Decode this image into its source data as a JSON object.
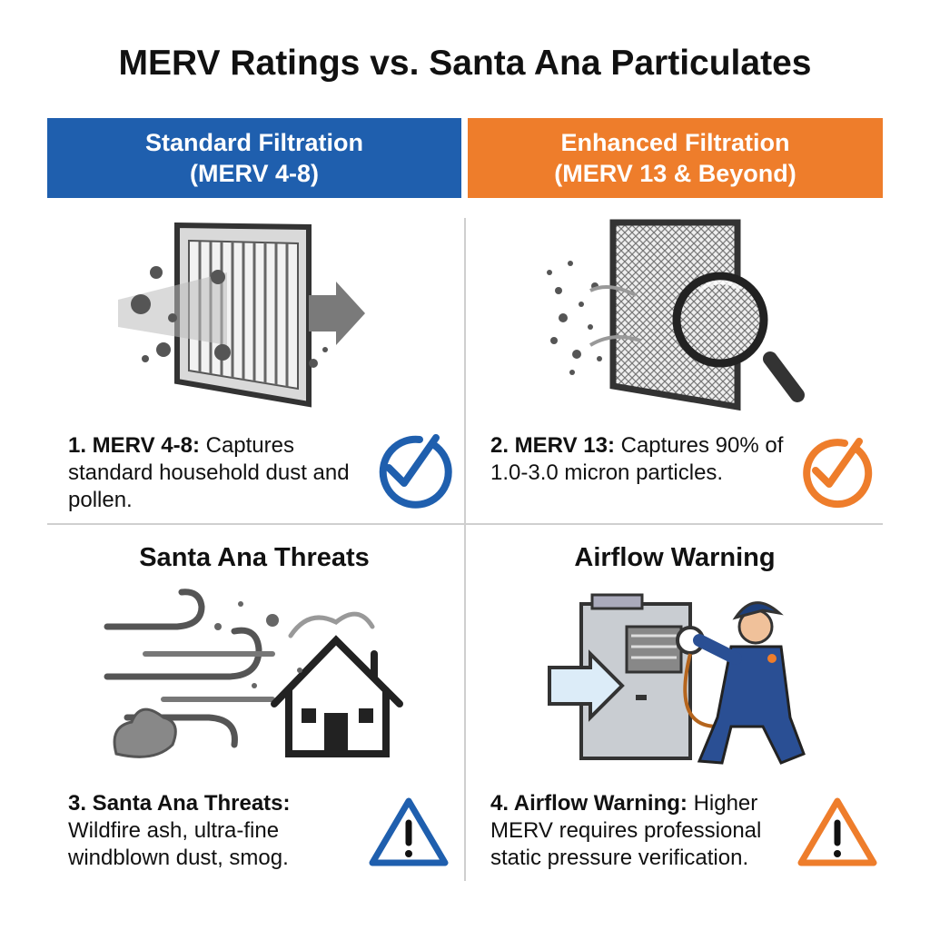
{
  "header": {
    "title": "MERV Ratings vs. Santa Ana Particulates"
  },
  "columns": [
    {
      "title": "Standard Filtration",
      "subtitle": "(MERV 4-8)"
    },
    {
      "title": "Enhanced Filtration",
      "subtitle": "(MERV 13 & Beyond)"
    }
  ],
  "panels": [
    {
      "label": "1. MERV 4-8:",
      "text": "Captures standard household dust and pollen."
    },
    {
      "label": "2. MERV 13:",
      "text": "Captures 90% of 1.0-3.0 micron particles."
    },
    {
      "heading": "Santa Ana Threats",
      "label": "3. Santa Ana Threats:",
      "text": "Wildfire ash, ultra-fine windblown dust, smog."
    },
    {
      "heading": "Airflow Warning",
      "label": "4. Airflow Warning:",
      "text": "Higher MERV requires professional static pressure verification."
    }
  ]
}
